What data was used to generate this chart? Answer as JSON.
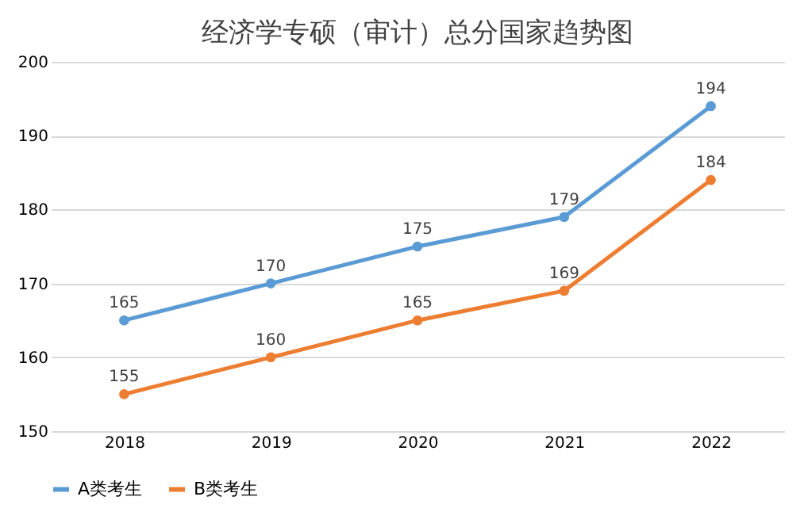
{
  "chart_data": {
    "type": "line",
    "title": "经济学专硕（审计）总分国家趋势图",
    "categories": [
      "2018",
      "2019",
      "2020",
      "2021",
      "2022"
    ],
    "series": [
      {
        "name": "A类考生",
        "color": "#5b9bd5",
        "values": [
          165,
          170,
          175,
          179,
          194
        ]
      },
      {
        "name": "B类考生",
        "color": "#ed7d31",
        "values": [
          155,
          160,
          165,
          169,
          184
        ]
      }
    ],
    "ylim": [
      150,
      200
    ],
    "yticks": [
      150,
      160,
      170,
      180,
      190,
      200
    ],
    "grid": "y",
    "legend": "bottom",
    "marker": "circle",
    "line_style": "solid",
    "data_labels": true
  }
}
